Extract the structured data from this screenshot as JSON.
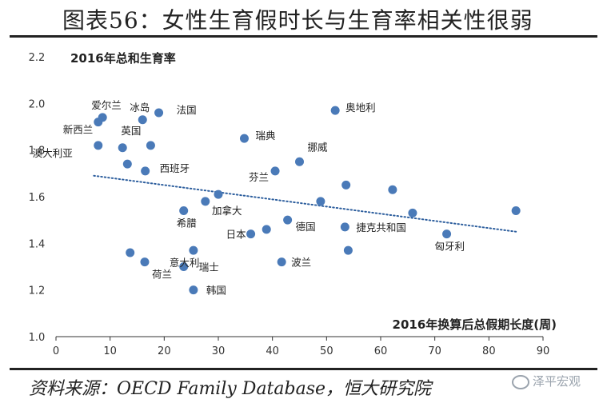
{
  "header": {
    "title": "图表56：女性生育假时长与生育率相关性很弱"
  },
  "footer": {
    "source": "资料来源：OECD Family Database，恒大研究院",
    "watermark": "泽平宏观"
  },
  "chart_data": {
    "type": "scatter",
    "xlabel": "2016年换算后总假期长度(周)",
    "ylabel": "2016年总和生育率",
    "xlim": [
      0,
      90
    ],
    "ylim": [
      1.0,
      2.2
    ],
    "xticks": [
      "0",
      "10",
      "20",
      "30",
      "40",
      "50",
      "60",
      "70",
      "80",
      "90"
    ],
    "yticks": [
      "1.0",
      "1.2",
      "1.4",
      "1.6",
      "1.8",
      "2.0",
      "2.2"
    ],
    "grid": false,
    "points": [
      {
        "x": 8.6,
        "y": 1.94,
        "label": "爱尔兰"
      },
      {
        "x": 16.0,
        "y": 1.93,
        "label": "冰岛"
      },
      {
        "x": 19.0,
        "y": 1.96,
        "label": "法国"
      },
      {
        "x": 7.8,
        "y": 1.92,
        "label": "新西兰"
      },
      {
        "x": 17.5,
        "y": 1.82,
        "label": "英国"
      },
      {
        "x": 7.8,
        "y": 1.82,
        "label": "澳大利亚"
      },
      {
        "x": 16.5,
        "y": 1.71,
        "label": "西班牙"
      },
      {
        "x": 34.8,
        "y": 1.85,
        "label": "瑞典"
      },
      {
        "x": 51.6,
        "y": 1.97,
        "label": "奥地利"
      },
      {
        "x": 45.0,
        "y": 1.75,
        "label": "挪威"
      },
      {
        "x": 40.5,
        "y": 1.71,
        "label": "芬兰"
      },
      {
        "x": 30.0,
        "y": 1.61,
        "label": "加拿大"
      },
      {
        "x": 23.6,
        "y": 1.54,
        "label": "希腊"
      },
      {
        "x": 25.4,
        "y": 1.37,
        "label": "意大利"
      },
      {
        "x": 36.0,
        "y": 1.44,
        "label": "日本"
      },
      {
        "x": 42.8,
        "y": 1.5,
        "label": "德国"
      },
      {
        "x": 53.4,
        "y": 1.47,
        "label": "捷克共和国"
      },
      {
        "x": 72.2,
        "y": 1.44,
        "label": "匈牙利"
      },
      {
        "x": 41.7,
        "y": 1.32,
        "label": "波兰"
      },
      {
        "x": 23.6,
        "y": 1.3,
        "label": "瑞士"
      },
      {
        "x": 16.4,
        "y": 1.32,
        "label": "荷兰"
      },
      {
        "x": 25.4,
        "y": 1.2,
        "label": "韩国"
      },
      {
        "x": 12.3,
        "y": 1.81,
        "label": ""
      },
      {
        "x": 13.2,
        "y": 1.74,
        "label": ""
      },
      {
        "x": 27.6,
        "y": 1.58,
        "label": ""
      },
      {
        "x": 38.9,
        "y": 1.46,
        "label": ""
      },
      {
        "x": 48.9,
        "y": 1.58,
        "label": ""
      },
      {
        "x": 53.6,
        "y": 1.65,
        "label": ""
      },
      {
        "x": 54.0,
        "y": 1.37,
        "label": ""
      },
      {
        "x": 62.2,
        "y": 1.63,
        "label": ""
      },
      {
        "x": 65.9,
        "y": 1.53,
        "label": ""
      },
      {
        "x": 85.0,
        "y": 1.54,
        "label": ""
      },
      {
        "x": 13.7,
        "y": 1.36,
        "label": ""
      }
    ],
    "trendline": {
      "style": "dotted",
      "x": [
        7,
        85
      ],
      "y": [
        1.69,
        1.45
      ]
    },
    "colors": {
      "points": "#4a7ab8",
      "trendline": "#2e5f9e",
      "axis": "#333333"
    }
  }
}
